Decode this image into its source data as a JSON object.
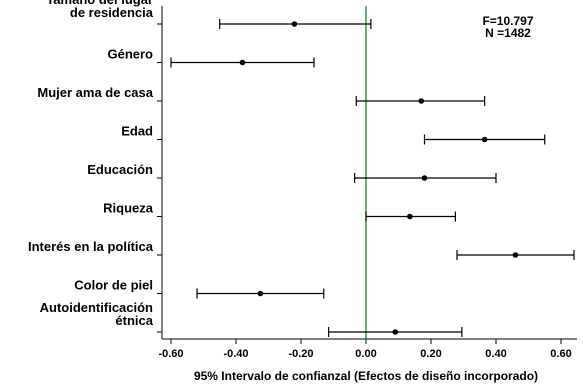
{
  "chart_data": {
    "type": "scatter",
    "subtype": "coefficient-plot-with-confidence-intervals",
    "categories": [
      [
        "Tamaño del lugar",
        "de residencia"
      ],
      [
        "Género"
      ],
      [
        "Mujer ama de casa"
      ],
      [
        "Edad"
      ],
      [
        "Educación"
      ],
      [
        "Riqueza"
      ],
      [
        "Interés en la política"
      ],
      [
        "Color de piel"
      ],
      [
        "Autoidentificación",
        "étnica"
      ]
    ],
    "estimates": [
      -0.22,
      -0.38,
      0.17,
      0.365,
      0.18,
      0.135,
      0.46,
      -0.325,
      0.09
    ],
    "ci_lower": [
      -0.45,
      -0.6,
      -0.03,
      0.18,
      -0.035,
      0.0,
      0.28,
      -0.52,
      -0.115
    ],
    "ci_upper": [
      0.015,
      -0.16,
      0.365,
      0.55,
      0.4,
      0.275,
      0.64,
      -0.13,
      0.295
    ],
    "xlim": [
      -0.64,
      0.64
    ],
    "xticks": [
      -0.6,
      -0.4,
      -0.2,
      0.0,
      0.2,
      0.4,
      0.6
    ],
    "xtick_labels": [
      "-0.60",
      "-0.40",
      "-0.20",
      "0.00",
      "0.20",
      "0.40",
      "0.60"
    ],
    "reference_line": 0.0,
    "xlabel": "95% Intervalo de confianzal (Efectos de diseño incorporado)",
    "stats": [
      "F=10.797",
      "N =1482"
    ],
    "colors": {
      "reference_line": "#1a8a1a",
      "marks": "#000000"
    }
  }
}
